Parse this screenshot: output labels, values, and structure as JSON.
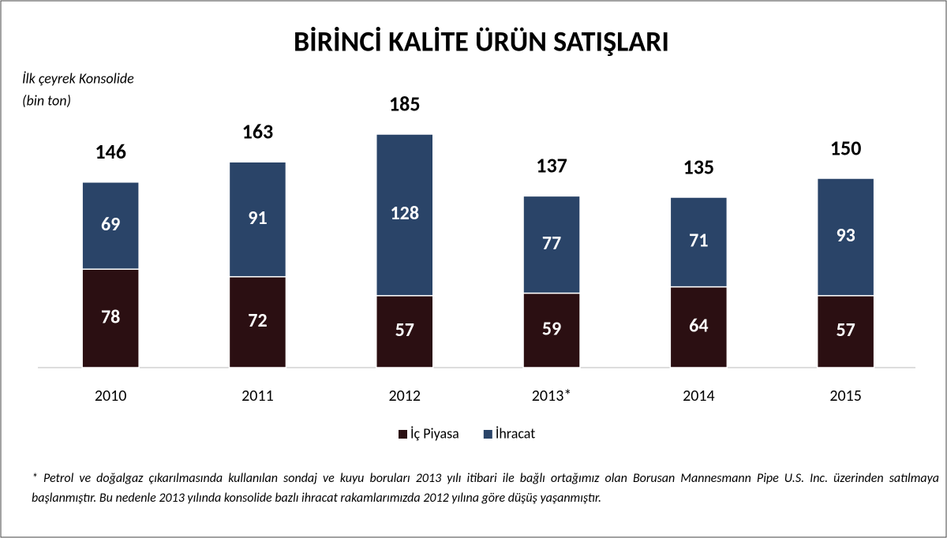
{
  "chart_data": {
    "type": "stacked_bar",
    "title": "BİRİNCİ KALİTE ÜRÜN SATIŞLARI",
    "subtitle": [
      "İlk çeyrek Konsolide",
      "(bin ton)"
    ],
    "categories": [
      "2010",
      "2011",
      "2012",
      "2013*",
      "2014",
      "2015"
    ],
    "series": [
      {
        "name": "İç Piyasa",
        "color": "#2b0f12",
        "values": [
          78,
          72,
          57,
          59,
          64,
          57
        ]
      },
      {
        "name": "İhracat",
        "color": "#2a4468",
        "values": [
          69,
          91,
          128,
          77,
          71,
          93
        ]
      }
    ],
    "totals": [
      146,
      163,
      185,
      137,
      135,
      150
    ],
    "footnote": "* Petrol ve doğalgaz çıkarılmasında kullanılan sondaj ve kuyu boruları 2013 yılı itibari ile bağlı ortağımız olan Borusan Mannesmann Pipe U.S. Inc. üzerinden satılmaya başlanmıştır. Bu nedenle 2013 yılında konsolide bazlı ihracat rakamlarımızda 2012 yılına göre düşüş yaşanmıştır."
  }
}
